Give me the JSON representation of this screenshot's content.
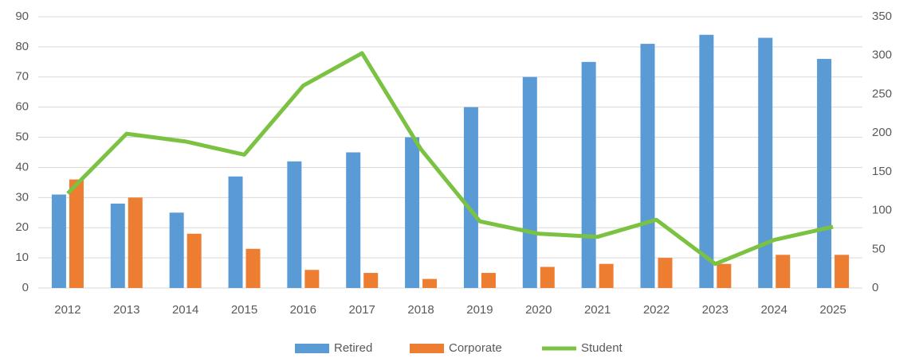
{
  "chart_data": {
    "type": "bar_line",
    "categories": [
      "2012",
      "2013",
      "2014",
      "2015",
      "2016",
      "2017",
      "2018",
      "2019",
      "2020",
      "2021",
      "2022",
      "2023",
      "2024",
      "2025"
    ],
    "series": [
      {
        "name": "Retired",
        "color": "#5b9bd5",
        "type": "bar",
        "values": [
          31,
          28,
          25,
          37,
          42,
          45,
          50,
          60,
          70,
          75,
          81,
          84,
          83,
          76
        ]
      },
      {
        "name": "Corporate",
        "color": "#ed7d31",
        "type": "bar",
        "values": [
          36,
          30,
          18,
          13,
          6,
          5,
          3,
          5,
          7,
          8,
          10,
          8,
          11,
          11
        ]
      },
      {
        "name": "Student",
        "color": "#7cc242",
        "type": "line",
        "axis": "y2",
        "values": [
          122,
          199,
          189,
          172,
          261,
          303,
          179,
          86,
          70,
          66,
          88,
          31,
          62,
          79
        ]
      }
    ],
    "ylim": [
      0,
      90
    ],
    "yticks": [
      0,
      10,
      20,
      30,
      40,
      50,
      60,
      70,
      80,
      90
    ],
    "y2lim": [
      0,
      350
    ],
    "y2ticks": [
      0,
      50,
      100,
      150,
      200,
      250,
      300,
      350
    ],
    "grid": true,
    "legend": "bottom"
  }
}
